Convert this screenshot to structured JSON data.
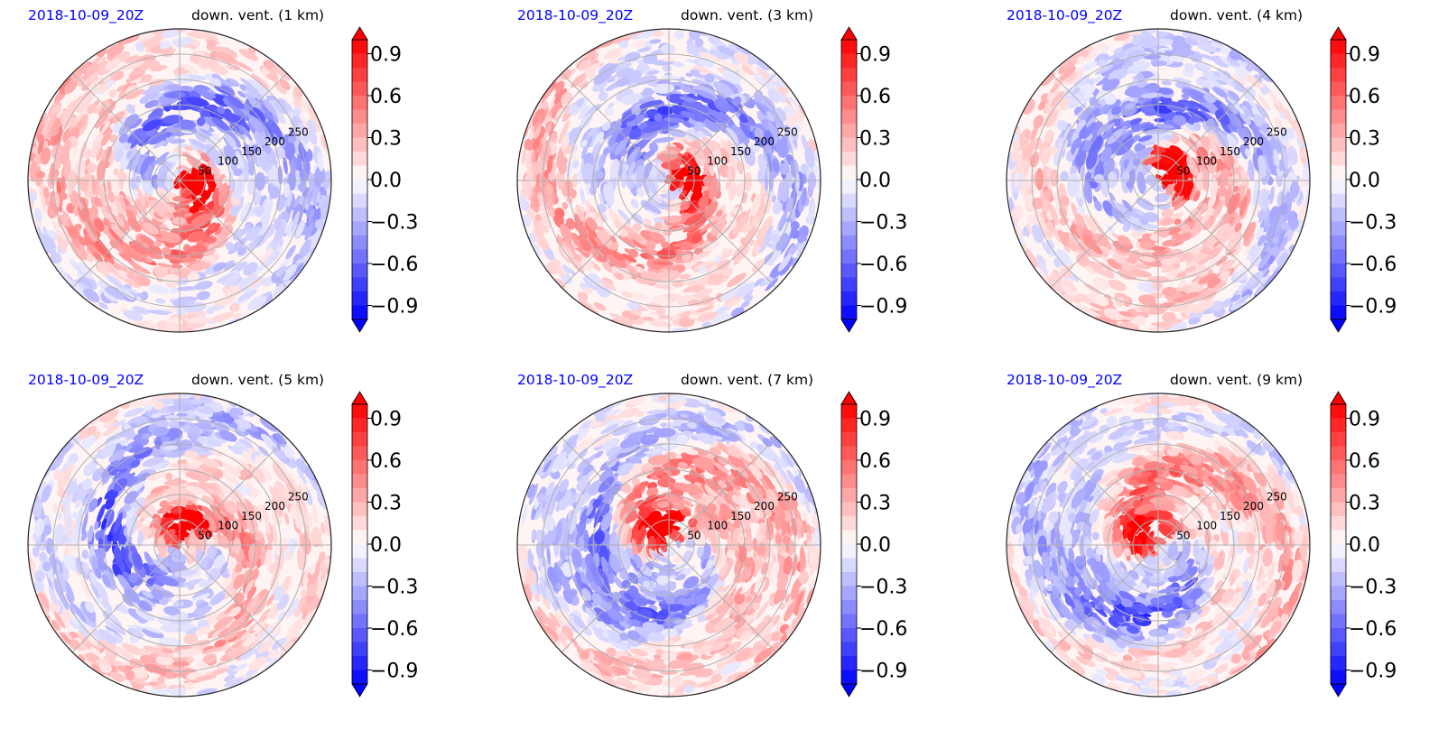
{
  "figure": {
    "colormap": {
      "neg_end": "#0000ff",
      "mid": "#ffffff",
      "pos_end": "#ff0000"
    },
    "panels": [
      {
        "date_label": "2018-10-09_20Z",
        "field_label": "down. vent. (1 km)"
      },
      {
        "date_label": "2018-10-09_20Z",
        "field_label": "down. vent. (3 km)"
      },
      {
        "date_label": "2018-10-09_20Z",
        "field_label": "down. vent. (4 km)"
      },
      {
        "date_label": "2018-10-09_20Z",
        "field_label": "down. vent. (5 km)"
      },
      {
        "date_label": "2018-10-09_20Z",
        "field_label": "down. vent. (7 km)"
      },
      {
        "date_label": "2018-10-09_20Z",
        "field_label": "down. vent. (9 km)"
      }
    ]
  },
  "chart_data": {
    "type": "heatmap",
    "projection": "polar",
    "radial_ticks": [
      "50",
      "100",
      "150",
      "200",
      "250"
    ],
    "radial_tick_values": [
      50,
      100,
      150,
      200,
      250
    ],
    "radial_max": 300,
    "colorbar": {
      "ticks": [
        "0.9",
        "0.6",
        "0.3",
        "0.0",
        "−0.3",
        "−0.6",
        "−0.9"
      ],
      "tick_values": [
        0.9,
        0.6,
        0.3,
        0.0,
        -0.3,
        -0.6,
        -0.9
      ],
      "range": [
        -1.0,
        1.0
      ],
      "levels": 20,
      "extend": "both"
    },
    "grid": true
  }
}
